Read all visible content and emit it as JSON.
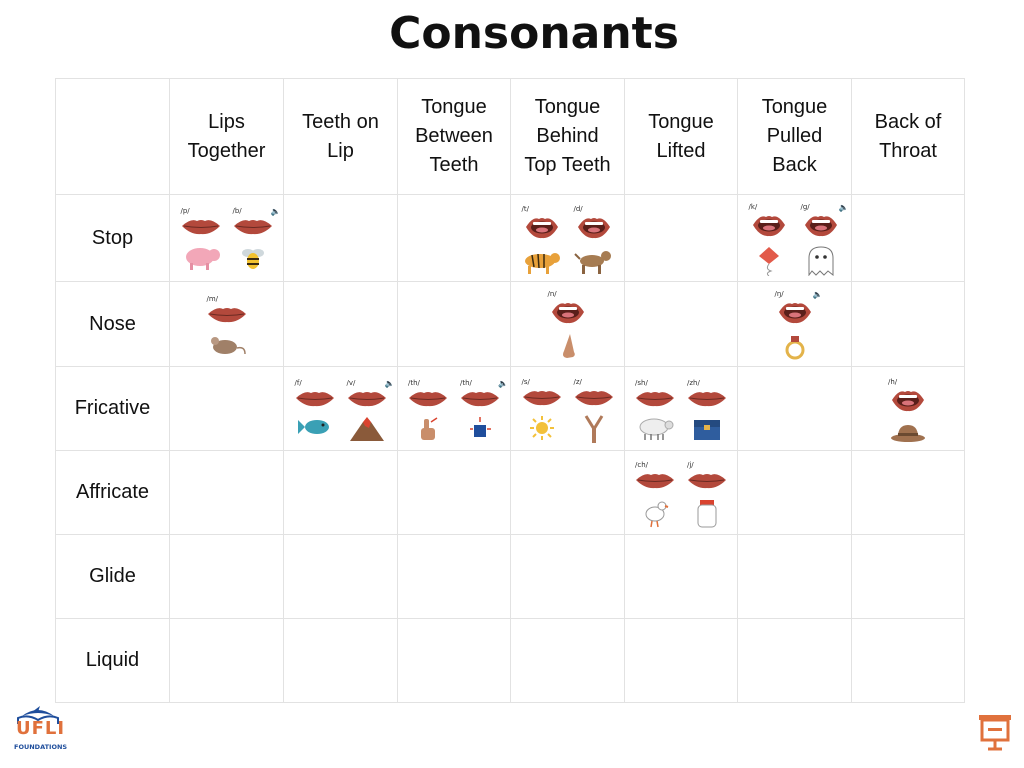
{
  "title": "Consonants",
  "columns": [
    {
      "lines": [
        "Lips",
        "Together"
      ]
    },
    {
      "lines": [
        "Teeth on",
        "Lip"
      ]
    },
    {
      "lines": [
        "Tongue",
        "Between",
        "Teeth"
      ]
    },
    {
      "lines": [
        "Tongue",
        "Behind",
        "Top Teeth"
      ]
    },
    {
      "lines": [
        "Tongue",
        "Lifted"
      ]
    },
    {
      "lines": [
        "Tongue",
        "Pulled",
        "Back"
      ]
    },
    {
      "lines": [
        "Back of",
        "Throat"
      ]
    }
  ],
  "rows": [
    {
      "label": "Stop",
      "cells": [
        [
          {
            "phon": "/p/",
            "pic": "pig"
          },
          {
            "phon": "/b/",
            "pic": "bee",
            "audio": true
          }
        ],
        [],
        [],
        [
          {
            "phon": "/t/",
            "pic": "tiger"
          },
          {
            "phon": "/d/",
            "pic": "dog"
          }
        ],
        [],
        [
          {
            "phon": "/k/",
            "pic": "kite"
          },
          {
            "phon": "/g/",
            "pic": "ghost",
            "audio": true
          }
        ],
        []
      ]
    },
    {
      "label": "Nose",
      "cells": [
        [
          {
            "phon": "/m/",
            "pic": "mouse"
          }
        ],
        [],
        [],
        [
          {
            "phon": "/n/",
            "pic": "nose"
          }
        ],
        [],
        [
          {
            "phon": "/ŋ/",
            "pic": "ring",
            "audio": true
          }
        ],
        []
      ]
    },
    {
      "label": "Fricative",
      "cells": [
        [],
        [
          {
            "phon": "/f/",
            "pic": "fish"
          },
          {
            "phon": "/v/",
            "pic": "volcano",
            "audio": true
          }
        ],
        [
          {
            "phon": "/th/",
            "pic": "thumb"
          },
          {
            "phon": "/th/",
            "pic": "this",
            "audio": true
          }
        ],
        [
          {
            "phon": "/s/",
            "pic": "sun"
          },
          {
            "phon": "/z/",
            "pic": "zipper"
          }
        ],
        [
          {
            "phon": "/sh/",
            "pic": "sheep"
          },
          {
            "phon": "/zh/",
            "pic": "treasure"
          }
        ],
        [],
        [
          {
            "phon": "/h/",
            "pic": "hat"
          }
        ]
      ]
    },
    {
      "label": "Affricate",
      "cells": [
        [],
        [],
        [],
        [],
        [
          {
            "phon": "/ch/",
            "pic": "chick"
          },
          {
            "phon": "/j/",
            "pic": "jar"
          }
        ],
        [],
        []
      ]
    },
    {
      "label": "Glide",
      "cells": [
        [],
        [],
        [],
        [],
        [],
        [],
        []
      ]
    },
    {
      "label": "Liquid",
      "cells": [
        [],
        [],
        [],
        [],
        [],
        [],
        []
      ]
    }
  ],
  "logo": {
    "top": "UFLI",
    "bottom": "FOUNDATIONS"
  },
  "colors": {
    "lips": "#b3493c",
    "accent": "#e0713c",
    "logo_blue": "#1f4e9c"
  }
}
